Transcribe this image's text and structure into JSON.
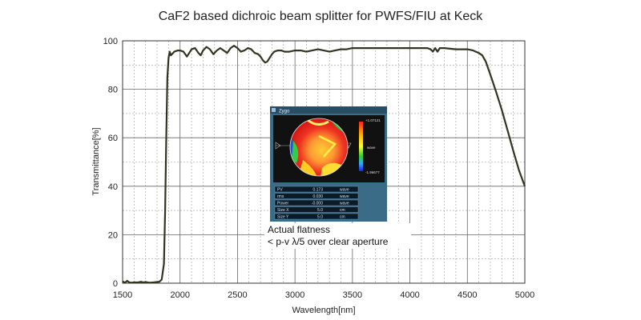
{
  "chart_data": {
    "type": "line",
    "title": "CaF2 based dichroic beam splitter for PWFS/FIU at Keck",
    "xlabel": "Wavelength[nm]",
    "ylabel": "Transmittance[%]",
    "xlim": [
      1500,
      5000
    ],
    "ylim": [
      0,
      100
    ],
    "x_ticks": [
      1500,
      2000,
      2500,
      3000,
      3500,
      4000,
      4500,
      5000
    ],
    "y_ticks": [
      0,
      20,
      40,
      60,
      80,
      100
    ],
    "grid": true,
    "line_color": "#333322",
    "series": [
      {
        "x": [
          1500,
          1520,
          1540,
          1560,
          1580,
          1600,
          1620,
          1640,
          1660,
          1680,
          1700,
          1720,
          1740,
          1760,
          1780,
          1800,
          1820,
          1840,
          1860,
          1870,
          1880,
          1890,
          1900,
          1910,
          1920,
          1950,
          1980,
          2000,
          2030,
          2060,
          2080,
          2100,
          2130,
          2160,
          2180,
          2200,
          2230,
          2260,
          2290,
          2320,
          2350,
          2380,
          2410,
          2440,
          2470,
          2500,
          2530,
          2560,
          2590,
          2620,
          2650,
          2680,
          2700,
          2720,
          2740,
          2760,
          2780,
          2800,
          2820,
          2850,
          2880,
          2910,
          2950,
          3000,
          3050,
          3100,
          3150,
          3200,
          3250,
          3300,
          3350,
          3400,
          3450,
          3500,
          3600,
          3700,
          3800,
          3900,
          4000,
          4100,
          4150,
          4180,
          4200,
          4220,
          4240,
          4260,
          4300,
          4400,
          4500,
          4550,
          4600,
          4630,
          4660,
          4700,
          4750,
          4800,
          4850,
          4900,
          4950,
          5000
        ],
        "y": [
          0.8,
          0.2,
          1.0,
          0.3,
          0.2,
          0.4,
          0.3,
          0.4,
          0.6,
          0.3,
          0.5,
          0.3,
          0.2,
          0.3,
          0.4,
          0.5,
          0.6,
          1.5,
          8,
          30,
          60,
          85,
          93,
          95.5,
          94,
          95.5,
          96,
          96,
          95.5,
          93.5,
          95,
          96.5,
          97,
          95,
          94,
          96,
          97.5,
          96.5,
          94.5,
          96,
          97,
          96,
          95,
          97,
          98,
          97,
          95.5,
          96,
          97,
          96.5,
          95,
          94.5,
          93.5,
          92,
          91,
          91.5,
          93,
          94.5,
          95.5,
          96,
          96,
          95.5,
          95.5,
          96,
          96,
          95.5,
          96,
          96.5,
          96,
          95.5,
          96,
          96.5,
          96.5,
          97,
          97,
          97,
          97,
          97,
          97,
          97,
          97,
          96.5,
          95.5,
          97,
          95.5,
          97,
          97,
          96.5,
          96.5,
          96,
          95,
          94,
          91.5,
          86,
          79,
          71.5,
          63,
          54.5,
          46.5,
          40
        ]
      }
    ]
  },
  "inset": {
    "header_tag": "Zygo",
    "scale_max": "+1.07121",
    "scale_mid": "wave",
    "scale_min": "-1.96677",
    "rows": [
      {
        "label": "PV",
        "value": "0.173",
        "unit": "wave"
      },
      {
        "label": "rms",
        "value": "0.030",
        "unit": "wave"
      },
      {
        "label": "Power",
        "value": "-0.000",
        "unit": "wave"
      },
      {
        "label": "Size X",
        "value": "5.0",
        "unit": "cm"
      },
      {
        "label": "Size Y",
        "value": "5.0",
        "unit": "cm"
      }
    ]
  },
  "caption": {
    "line1": "Actual flatness",
    "line2": "< p-v λ/5 over clear aperture"
  }
}
